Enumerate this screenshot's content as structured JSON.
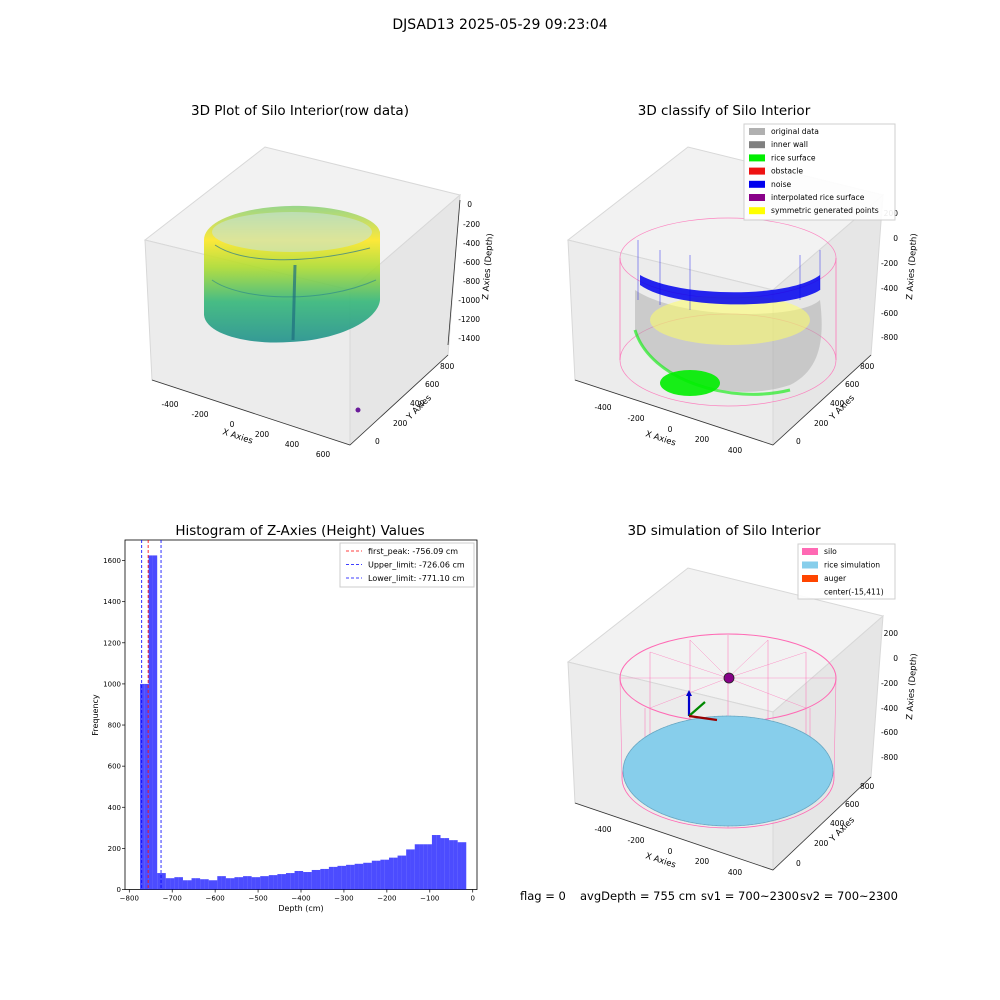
{
  "suptitle": "DJSAD13 2025-05-29 09:23:04",
  "panel1": {
    "title": "3D Plot of Silo Interior(row data)",
    "x_label": "X Axies",
    "y_label": "Y Axies",
    "z_label": "Z Axies (Depth)",
    "x_ticks": [
      "-400",
      "-200",
      "0",
      "200",
      "400",
      "600"
    ],
    "y_ticks": [
      "0",
      "200",
      "400",
      "600",
      "800"
    ],
    "z_ticks": [
      "0",
      "-200",
      "-400",
      "-600",
      "-800",
      "-1000",
      "-1200",
      "-1400"
    ],
    "colormap": [
      "#440154",
      "#31688e",
      "#35b779",
      "#fde725"
    ]
  },
  "panel2": {
    "title": "3D classify of Silo Interior",
    "x_label": "X Axies",
    "y_label": "Y Axies",
    "z_label": "Z Axies (Depth)",
    "x_ticks": [
      "-400",
      "-200",
      "0",
      "200",
      "400"
    ],
    "y_ticks": [
      "0",
      "200",
      "400",
      "600",
      "800"
    ],
    "z_ticks": [
      "200",
      "0",
      "-200",
      "-400",
      "-600",
      "-800"
    ],
    "legend": [
      {
        "label": "original data",
        "color": "#b0b0b0"
      },
      {
        "label": "inner wall",
        "color": "#808080"
      },
      {
        "label": "rice surface",
        "color": "#00ee00"
      },
      {
        "label": "obstacle",
        "color": "#ee1111"
      },
      {
        "label": "noise",
        "color": "#0000ee"
      },
      {
        "label": "interpolated rice surface",
        "color": "#880088"
      },
      {
        "label": "symmetric generated points",
        "color": "#ffff00"
      }
    ]
  },
  "panel3": {
    "title": "3D simulation of Silo Interior",
    "x_label": "X Axies",
    "y_label": "Y Axies",
    "z_label": "Z Axies (Depth)",
    "x_ticks": [
      "-400",
      "-200",
      "0",
      "200",
      "400"
    ],
    "y_ticks": [
      "0",
      "200",
      "400",
      "600",
      "800"
    ],
    "z_ticks": [
      "200",
      "0",
      "-200",
      "-400",
      "-600",
      "-800"
    ],
    "legend": [
      {
        "label": "silo",
        "color": "#ff69b4"
      },
      {
        "label": "rice simulation",
        "color": "#87ceeb"
      },
      {
        "label": "auger",
        "color": "#ff4500"
      },
      {
        "label": "center(-15,411)",
        "color": ""
      }
    ]
  },
  "status": {
    "flag": "flag = 0",
    "avg": "avgDepth = 755 cm",
    "sv1": "sv1 = 700~2300",
    "sv2": "sv2 = 700~2300"
  },
  "chart_data": [
    {
      "type": "bar",
      "title": "Histogram of Z-Axies (Height) Values",
      "xlabel": "Depth (cm)",
      "ylabel": "Frequency",
      "xlim": [
        -810,
        10
      ],
      "ylim": [
        0,
        1700
      ],
      "x_ticks": [
        -800,
        -700,
        -600,
        -500,
        -400,
        -300,
        -200,
        -100,
        0
      ],
      "y_ticks": [
        0,
        200,
        400,
        600,
        800,
        1000,
        1200,
        1400,
        1600
      ],
      "bar_color": "#0000ff",
      "bin_width": 10,
      "bin_starts": [
        -775,
        -765,
        -755,
        -745,
        -735,
        -725,
        -715,
        -705,
        -695,
        -685,
        -675,
        -665,
        -655,
        -645,
        -635,
        -625,
        -615,
        -605,
        -595,
        -585,
        -575,
        -565,
        -555,
        -545,
        -535,
        -525,
        -515,
        -505,
        -495,
        -485,
        -475,
        -465,
        -455,
        -445,
        -435,
        -425,
        -415,
        -405,
        -395,
        -385,
        -375,
        -365,
        -355,
        -345,
        -335,
        -325,
        -315,
        -305,
        -295,
        -285,
        -275,
        -265,
        -255,
        -245,
        -235,
        -225,
        -215,
        -205,
        -195,
        -185,
        -175,
        -165,
        -155,
        -145,
        -135,
        -125,
        -115,
        -105,
        -95,
        -85,
        -75,
        -65,
        -55,
        -45,
        -35,
        -25
      ],
      "values": [
        1000,
        1000,
        1625,
        1625,
        80,
        80,
        55,
        55,
        60,
        60,
        45,
        45,
        55,
        55,
        50,
        50,
        45,
        45,
        65,
        65,
        55,
        55,
        60,
        60,
        65,
        65,
        60,
        60,
        65,
        65,
        70,
        70,
        75,
        75,
        80,
        80,
        90,
        90,
        85,
        85,
        95,
        95,
        100,
        100,
        110,
        110,
        115,
        115,
        120,
        120,
        125,
        125,
        130,
        130,
        140,
        140,
        145,
        145,
        155,
        155,
        165,
        165,
        195,
        195,
        220,
        220,
        220,
        220,
        265,
        265,
        250,
        250,
        240,
        240,
        230,
        230
      ],
      "vlines": [
        {
          "label": "first_peak: -756.09 cm",
          "x": -756.09,
          "color": "#ff0000"
        },
        {
          "label": "Upper_limit: -726.06 cm",
          "x": -726.06,
          "color": "#0000ff"
        },
        {
          "label": "Lower_limit: -771.10 cm",
          "x": -771.1,
          "color": "#0000ff"
        }
      ],
      "legend_position": "top-right"
    }
  ]
}
